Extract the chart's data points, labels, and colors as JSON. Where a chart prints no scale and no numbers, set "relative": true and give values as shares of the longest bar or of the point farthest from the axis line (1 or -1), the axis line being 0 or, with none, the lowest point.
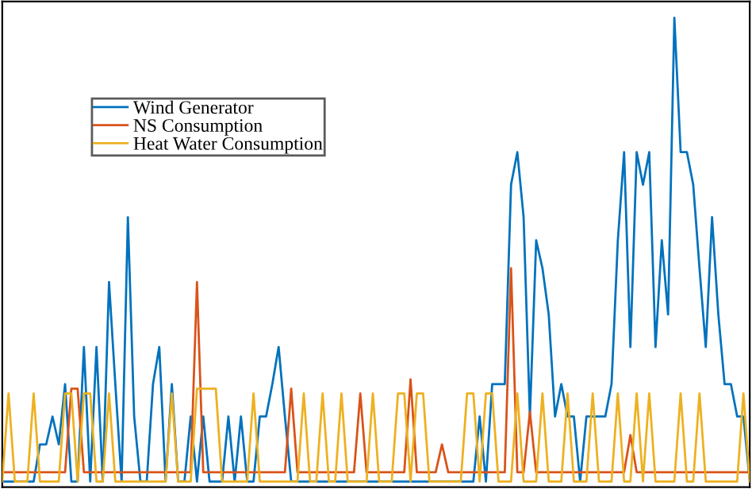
{
  "chart_data": {
    "type": "line",
    "relative": true,
    "legend": "top left",
    "marker": "none",
    "line_style": "solid",
    "categories": [
      null,
      null,
      null,
      null,
      null,
      null,
      null,
      null,
      null,
      null,
      null,
      null,
      null,
      null,
      null,
      null,
      null,
      null,
      null,
      null,
      null,
      null,
      null,
      null,
      null,
      null,
      null,
      null,
      null,
      null,
      null,
      null,
      null,
      null,
      null,
      null,
      null,
      null,
      null,
      null,
      null,
      null,
      null,
      null,
      null,
      null,
      null,
      null,
      null,
      null,
      null,
      null,
      null,
      null,
      null,
      null,
      null,
      null,
      null,
      null,
      null,
      null,
      null,
      null,
      null,
      null,
      null,
      null,
      null,
      null,
      null,
      null,
      null,
      null,
      null,
      null,
      null,
      null,
      null,
      null,
      null,
      null,
      null,
      null,
      null,
      null,
      null,
      null,
      null,
      null,
      null,
      null,
      null,
      null,
      null,
      null,
      null,
      null,
      null,
      null,
      null,
      null,
      null,
      null,
      null,
      null,
      null,
      null,
      null,
      null,
      null,
      null,
      null,
      null,
      null,
      null,
      null,
      null,
      null,
      null
    ],
    "series": [
      {
        "name": "Wind Generator",
        "color": "#0072bd",
        "values": [
          0,
          0,
          0,
          0,
          0,
          0,
          0.08,
          0.08,
          0.14,
          0.08,
          0.21,
          0,
          0,
          0.29,
          0,
          0.29,
          0,
          0.43,
          0.21,
          0,
          0.57,
          0.14,
          0,
          0,
          0.21,
          0.29,
          0,
          0.21,
          0,
          0,
          0.14,
          0,
          0.14,
          0,
          0,
          0,
          0.14,
          0,
          0.14,
          0,
          0,
          0.14,
          0.14,
          0.21,
          0.29,
          0.14,
          0,
          0,
          0,
          0,
          0,
          0,
          0,
          0,
          0,
          0,
          0,
          0,
          0,
          0,
          0,
          0,
          0,
          0,
          0,
          0,
          0,
          0,
          0,
          0,
          0,
          0,
          0,
          0,
          0,
          0,
          0.14,
          0,
          0.21,
          0.21,
          0.21,
          0.64,
          0.71,
          0.57,
          0.14,
          0.52,
          0.46,
          0.36,
          0.14,
          0.21,
          0.14,
          0.14,
          0,
          0.14,
          0.14,
          0.14,
          0.14,
          0.21,
          0.52,
          0.71,
          0.29,
          0.71,
          0.64,
          0.71,
          0.29,
          0.52,
          0.36,
          1,
          0.71,
          0.71,
          0.64,
          0.46,
          0.29,
          0.57,
          0.36,
          0.21,
          0.21,
          0.14,
          0.14,
          0
        ]
      },
      {
        "name": "NS Consumption",
        "color": "#d95319",
        "values": [
          0.02,
          0.02,
          0.02,
          0.02,
          0.02,
          0.02,
          0.02,
          0.02,
          0.02,
          0.02,
          0.02,
          0.2,
          0.2,
          0.02,
          0.02,
          0.02,
          0.02,
          0.02,
          0.02,
          0.02,
          0.02,
          0.02,
          0.02,
          0.02,
          0.02,
          0.02,
          0.02,
          0.02,
          0.02,
          0.02,
          0.02,
          0.43,
          0.02,
          0.02,
          0.02,
          0.02,
          0.02,
          0.02,
          0.02,
          0.02,
          0.02,
          0.02,
          0.02,
          0.02,
          0.02,
          0.02,
          0.2,
          0.02,
          0.02,
          0.02,
          0.02,
          0.02,
          0.02,
          0.02,
          0.02,
          0.02,
          0.02,
          0.19,
          0.02,
          0.02,
          0.02,
          0.02,
          0.02,
          0.02,
          0.02,
          0.22,
          0.02,
          0.02,
          0.02,
          0.02,
          0.08,
          0.02,
          0.02,
          0.02,
          0.02,
          0.02,
          0.02,
          0.02,
          0.02,
          0.02,
          0.02,
          0.46,
          0.02,
          0.02,
          0.15,
          0.02,
          0.02,
          0.02,
          0.02,
          0.02,
          0.02,
          0.02,
          0.02,
          0.02,
          0.02,
          0.02,
          0.02,
          0.02,
          0.02,
          0.02,
          0.1,
          0.02,
          0.02,
          0.02,
          0.02,
          0.02,
          0.02,
          0.02,
          0.02,
          0.02,
          0.02,
          0.02,
          0.02,
          0.02,
          0.02,
          0.02,
          0.02,
          0.02,
          0.02,
          0.02
        ]
      },
      {
        "name": "Heat Water Consumption",
        "color": "#edb120",
        "values": [
          0,
          0.19,
          0,
          0,
          0,
          0.19,
          0,
          0,
          0,
          0,
          0.19,
          0.19,
          0,
          0.19,
          0.19,
          0,
          0,
          0.19,
          0,
          0,
          0,
          0,
          0,
          0,
          0,
          0,
          0,
          0.19,
          0,
          0,
          0,
          0.2,
          0.2,
          0.2,
          0.2,
          0,
          0,
          0,
          0,
          0,
          0.19,
          0,
          0,
          0,
          0,
          0,
          0,
          0,
          0.19,
          0,
          0,
          0.19,
          0,
          0,
          0.19,
          0,
          0,
          0,
          0,
          0.19,
          0,
          0,
          0,
          0.19,
          0.19,
          0,
          0.19,
          0.19,
          0,
          0,
          0,
          0,
          0,
          0,
          0.19,
          0.19,
          0,
          0.19,
          0.19,
          0,
          0,
          0,
          0.19,
          0,
          0,
          0,
          0.19,
          0,
          0,
          0,
          0.19,
          0,
          0,
          0,
          0.19,
          0,
          0,
          0,
          0.19,
          0,
          0,
          0.19,
          0,
          0.19,
          0,
          0,
          0,
          0,
          0.19,
          0,
          0,
          0.19,
          0,
          0,
          0,
          0,
          0,
          0,
          0.19,
          0
        ]
      }
    ]
  }
}
